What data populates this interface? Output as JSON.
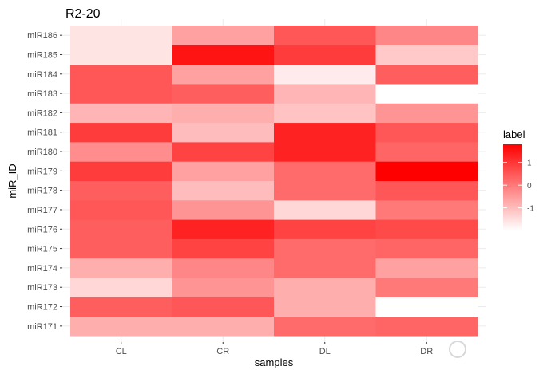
{
  "chart_data": {
    "type": "heatmap",
    "title": "R2-20",
    "xlabel": "samples",
    "ylabel": "miR_ID",
    "x": [
      "CL",
      "CR",
      "DL",
      "DR"
    ],
    "y": [
      "miR171",
      "miR172",
      "miR173",
      "miR174",
      "miR175",
      "miR176",
      "miR177",
      "miR178",
      "miR179",
      "miR180",
      "miR181",
      "miR182",
      "miR183",
      "miR184",
      "miR185",
      "miR186"
    ],
    "values": [
      [
        -0.8,
        -0.8,
        0.2,
        0.3
      ],
      [
        0.4,
        0.5,
        -0.8,
        null
      ],
      [
        -1.4,
        -0.4,
        -0.8,
        0.0
      ],
      [
        -0.8,
        -0.2,
        0.2,
        -0.6
      ],
      [
        0.4,
        0.8,
        0.2,
        0.3
      ],
      [
        0.4,
        1.3,
        0.8,
        0.7
      ],
      [
        0.5,
        -0.4,
        -1.4,
        0.0
      ],
      [
        0.4,
        -1.0,
        0.2,
        0.5
      ],
      [
        0.9,
        -0.6,
        0.2,
        1.8
      ],
      [
        -0.3,
        0.8,
        1.3,
        0.3
      ],
      [
        0.9,
        -1.0,
        1.3,
        0.5
      ],
      [
        -0.9,
        -0.8,
        -1.1,
        -0.4
      ],
      [
        0.5,
        0.4,
        -0.9,
        -2.0
      ],
      [
        0.5,
        -0.6,
        -1.7,
        0.4
      ],
      [
        -1.6,
        1.5,
        0.9,
        -1.2
      ],
      [
        -1.6,
        -0.6,
        0.5,
        -0.2
      ]
    ],
    "legend": {
      "title": "label",
      "ticks": [
        1,
        0,
        -1
      ],
      "placement": "right",
      "range": [
        -2,
        1.8
      ],
      "low_color": "#ffffff",
      "high_color": "#ff0000"
    },
    "grid": true,
    "na_color": "#ffffff"
  }
}
